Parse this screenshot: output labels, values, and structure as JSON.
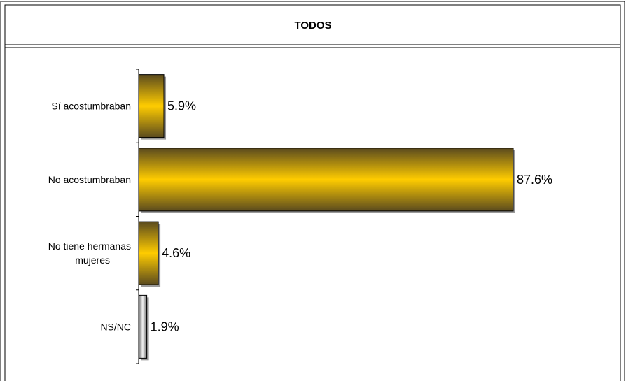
{
  "chart_data": {
    "type": "bar",
    "orientation": "horizontal",
    "title": "TODOS",
    "xlabel": "",
    "ylabel": "",
    "categories": [
      "Sí acostumbraban",
      "No acostumbraban",
      "No tiene hermanas mujeres",
      "NS/NC"
    ],
    "category_lines": [
      [
        "Sí acostumbraban"
      ],
      [
        "No acostumbraban"
      ],
      [
        "No tiene hermanas",
        "mujeres"
      ],
      [
        "NS/NC"
      ]
    ],
    "values": [
      5.9,
      87.6,
      4.6,
      1.9
    ],
    "value_labels": [
      "5.9%",
      "87.6%",
      "4.6%",
      "1.9%"
    ],
    "xlim": [
      0,
      100
    ],
    "grid": false,
    "legend": "none",
    "colors": {
      "bar_gold_light": "#FFCC00",
      "bar_gold_dark": "#5A4A1E",
      "bar_gray_light": "#F2F2F2",
      "bar_gray_dark": "#6E6E6E",
      "border": "#000000"
    },
    "bar_color_keys": [
      "gold",
      "gold",
      "gold",
      "gray"
    ]
  }
}
